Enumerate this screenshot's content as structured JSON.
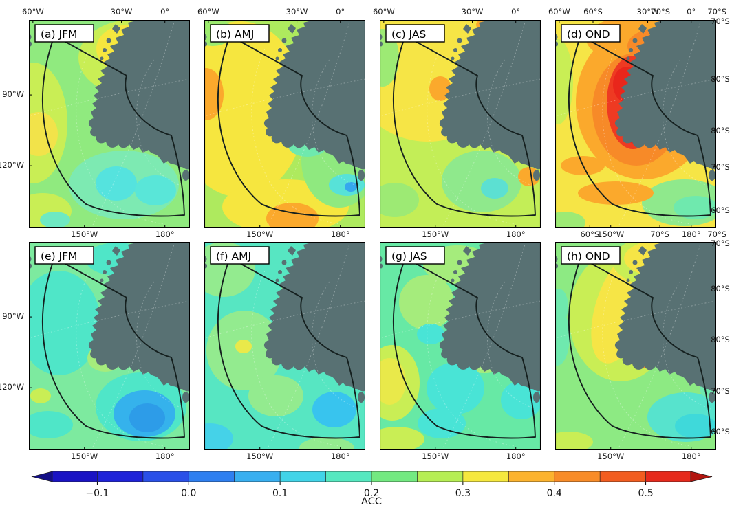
{
  "figure": {
    "background": "#ffffff",
    "land_color": "#587173",
    "sector_outline_color": "#15201f",
    "graticule_color": "#ffffff",
    "colorbar": {
      "label": "ACC",
      "tick_labels": [
        "−0.1",
        "0.0",
        "0.1",
        "0.2",
        "0.3",
        "0.4",
        "0.5"
      ],
      "tick_values": [
        -0.1,
        0.0,
        0.1,
        0.2,
        0.3,
        0.4,
        0.5
      ],
      "range": [
        -0.15,
        0.55
      ],
      "contour_interval": 0.05,
      "segment_colors": [
        "#1a13c4",
        "#1e22d8",
        "#2a50e8",
        "#2e7ff0",
        "#38aff0",
        "#41d4e8",
        "#55e8c0",
        "#73e981",
        "#b6ee54",
        "#f6e83e",
        "#fcb32e",
        "#f88c28",
        "#f25d20",
        "#e62a1c"
      ],
      "left_arrow_color": "#140f86",
      "right_arrow_color": "#b2150f"
    }
  },
  "chart_data": {
    "type": "filled-contour-map-grid",
    "variable": "ACC",
    "projection": "south-polar-stereographic sector (Ross–Amundsen–Bellingshausen seas)",
    "rows": 2,
    "cols": 4,
    "colorbar_range": [
      -0.15,
      0.55
    ],
    "axis": {
      "top_row1": [
        {
          "t": "60°W",
          "x": 0.025
        },
        {
          "t": "30°W",
          "x": 0.575
        },
        {
          "t": "0°",
          "x": 0.845
        }
      ],
      "top_d_extra": [
        {
          "t": "60°S",
          "x": 0.235
        },
        {
          "t": "70°S",
          "x": 0.655
        },
        {
          "t": "70°S",
          "x": 1.005
        }
      ],
      "bottom_common": [
        {
          "t": "150°W",
          "x": 0.345
        },
        {
          "t": "180°",
          "x": 0.845
        }
      ],
      "bottom_d_extra": [
        {
          "t": "60°S",
          "x": 0.215
        },
        {
          "t": "70°S",
          "x": 0.65
        },
        {
          "t": "70°S",
          "x": 1.005
        }
      ],
      "left_col1": [
        {
          "t": "90°W",
          "y": 0.36
        },
        {
          "t": "120°W",
          "y": 0.7
        }
      ],
      "right_row1": [
        {
          "t": "70°S",
          "y": 0.005
        },
        {
          "t": "80°S",
          "y": 0.285
        },
        {
          "t": "80°S",
          "y": 0.53
        },
        {
          "t": "70°S",
          "y": 0.705
        },
        {
          "t": "60°S",
          "y": 0.915
        }
      ],
      "right_row2": [
        {
          "t": "70°S",
          "y": 0.005
        },
        {
          "t": "80°S",
          "y": 0.225
        },
        {
          "t": "80°S",
          "y": 0.47
        },
        {
          "t": "70°S",
          "y": 0.715
        },
        {
          "t": "60°S",
          "y": 0.91
        }
      ]
    },
    "panels": [
      {
        "id": "a",
        "label": "(a) JFM",
        "row": 0,
        "col": 0,
        "acc_range": [
          0.1,
          0.35
        ],
        "base": "#90ea7f",
        "blobs": [
          [
            150,
            55,
            78,
            55,
            "#c9ee55"
          ],
          [
            140,
            42,
            42,
            34,
            "#f6e63f"
          ],
          [
            6,
            150,
            50,
            88,
            "#c9ee55"
          ],
          [
            14,
            166,
            28,
            32,
            "#f2e34a"
          ],
          [
            20,
            278,
            42,
            26,
            "#c9ee55"
          ],
          [
            138,
            240,
            80,
            50,
            "#7deab2"
          ],
          [
            127,
            238,
            30,
            25,
            "#55e3de"
          ],
          [
            184,
            248,
            30,
            22,
            "#59e6d8"
          ],
          [
            38,
            291,
            22,
            12,
            "#6ee9c2"
          ],
          [
            208,
            142,
            20,
            15,
            "#7deab2"
          ]
        ]
      },
      {
        "id": "b",
        "label": "(b) AMJ",
        "row": 0,
        "col": 1,
        "acc_range": [
          0.0,
          0.4
        ],
        "base": "#aeea5e",
        "blobs": [
          [
            52,
            130,
            95,
            128,
            "#f6e63f"
          ],
          [
            118,
            272,
            92,
            40,
            "#f6e63f"
          ],
          [
            2,
            108,
            26,
            38,
            "#fba92c"
          ],
          [
            128,
            289,
            38,
            23,
            "#fba92c"
          ],
          [
            196,
            205,
            55,
            68,
            "#8fe97f"
          ],
          [
            150,
            183,
            28,
            16,
            "#6fe9ae"
          ],
          [
            207,
            240,
            26,
            16,
            "#57e2d8"
          ],
          [
            213,
            243,
            9,
            7,
            "#35a8ee"
          ],
          [
            198,
            10,
            42,
            16,
            "#f6e63f"
          ],
          [
            12,
            18,
            30,
            20,
            "#9ceb6e"
          ]
        ]
      },
      {
        "id": "c",
        "label": "(c) JAS",
        "row": 0,
        "col": 2,
        "acc_range": [
          0.1,
          0.4
        ],
        "base": "#c3ee57",
        "blobs": [
          [
            70,
            75,
            112,
            102,
            "#f6e546"
          ],
          [
            160,
            30,
            70,
            45,
            "#f6e546"
          ],
          [
            158,
            7,
            18,
            10,
            "#fba92c"
          ],
          [
            150,
            62,
            12,
            10,
            "#fba92c"
          ],
          [
            88,
            100,
            16,
            18,
            "#fba92c"
          ],
          [
            148,
            235,
            58,
            45,
            "#8fe98c"
          ],
          [
            167,
            245,
            20,
            15,
            "#5ce0d2"
          ],
          [
            217,
            228,
            16,
            14,
            "#fba92c"
          ],
          [
            22,
            262,
            35,
            25,
            "#9dea74"
          ],
          [
            4,
            55,
            24,
            42,
            "#9dea74"
          ]
        ]
      },
      {
        "id": "d",
        "label": "(d) OND",
        "row": 0,
        "col": 3,
        "acc_range": [
          0.15,
          0.55
        ],
        "base": "#f6e546",
        "blobs": [
          [
            4,
            90,
            22,
            62,
            "#c9ee55"
          ],
          [
            14,
            295,
            30,
            16,
            "#9dea74"
          ],
          [
            188,
            266,
            62,
            34,
            "#8fe98c"
          ],
          [
            204,
            273,
            32,
            17,
            "#6fe9ae"
          ],
          [
            128,
            120,
            98,
            112,
            "#fba92c"
          ],
          [
            140,
            28,
            95,
            38,
            "#fba92c"
          ],
          [
            40,
            212,
            32,
            14,
            "#fba92c"
          ],
          [
            88,
            252,
            55,
            17,
            "#fba92c"
          ],
          [
            118,
            130,
            64,
            82,
            "#f78a28"
          ],
          [
            150,
            38,
            45,
            26,
            "#f78a28"
          ],
          [
            113,
            120,
            38,
            68,
            "#ee3a22"
          ],
          [
            104,
            94,
            20,
            26,
            "#e9261b"
          ],
          [
            116,
            150,
            22,
            30,
            "#e9261b"
          ],
          [
            180,
            163,
            45,
            22,
            "#f78a28"
          ],
          [
            224,
            193,
            20,
            17,
            "#fba92c"
          ]
        ]
      },
      {
        "id": "e",
        "label": "(e) JFM",
        "row": 1,
        "col": 0,
        "acc_range": [
          0.0,
          0.25
        ],
        "base": "#7dea9f",
        "blobs": [
          [
            128,
            25,
            46,
            24,
            "#4fe6c8"
          ],
          [
            44,
            118,
            60,
            76,
            "#4fe6c8"
          ],
          [
            163,
            240,
            66,
            50,
            "#4fe6c8"
          ],
          [
            168,
            250,
            45,
            34,
            "#35b2ec"
          ],
          [
            172,
            256,
            26,
            21,
            "#2d9ce8"
          ],
          [
            28,
            266,
            36,
            20,
            "#4fe6c8"
          ],
          [
            111,
            169,
            26,
            20,
            "#a5ec7c"
          ],
          [
            112,
            167,
            13,
            9,
            "#c9ee55"
          ],
          [
            17,
            224,
            15,
            11,
            "#c9ee55"
          ]
        ]
      },
      {
        "id": "f",
        "label": "(f) AMJ",
        "row": 1,
        "col": 1,
        "acc_range": [
          0.05,
          0.3
        ],
        "base": "#57e6c2",
        "blobs": [
          [
            28,
            40,
            46,
            40,
            "#93eb8f"
          ],
          [
            58,
            158,
            55,
            58,
            "#93eb8f"
          ],
          [
            140,
            88,
            32,
            44,
            "#93eb8f"
          ],
          [
            104,
            224,
            40,
            30,
            "#93eb8f"
          ],
          [
            57,
            152,
            12,
            10,
            "#e9e94a"
          ],
          [
            189,
            244,
            32,
            26,
            "#38c4ee"
          ],
          [
            8,
            286,
            34,
            22,
            "#45d2e8"
          ],
          [
            178,
            300,
            40,
            16,
            "#93eb8f"
          ]
        ]
      },
      {
        "id": "g",
        "label": "(g) JAS",
        "row": 1,
        "col": 2,
        "acc_range": [
          0.1,
          0.3
        ],
        "base": "#67e9a5",
        "blobs": [
          [
            113,
            33,
            50,
            28,
            "#a5ec7c"
          ],
          [
            68,
            88,
            40,
            40,
            "#a5ec7c"
          ],
          [
            152,
            158,
            45,
            33,
            "#a5ec7c"
          ],
          [
            110,
            213,
            42,
            38,
            "#49e4d6"
          ],
          [
            90,
            264,
            35,
            22,
            "#49e4d6"
          ],
          [
            74,
            134,
            20,
            15,
            "#49e4d6"
          ],
          [
            206,
            230,
            30,
            28,
            "#49e4d6"
          ],
          [
            18,
            205,
            40,
            55,
            "#c9ee55"
          ],
          [
            14,
            203,
            24,
            34,
            "#e9e94a"
          ],
          [
            25,
            287,
            40,
            18,
            "#c9ee55"
          ]
        ]
      },
      {
        "id": "h",
        "label": "(h) OND",
        "row": 1,
        "col": 3,
        "acc_range": [
          0.1,
          0.45
        ],
        "base": "#8dea83",
        "blobs": [
          [
            95,
            108,
            75,
            95,
            "#c9ee55"
          ],
          [
            97,
            95,
            38,
            85,
            "#f6e546",
            18
          ],
          [
            165,
            28,
            82,
            40,
            "#c9ee55"
          ],
          [
            160,
            24,
            60,
            28,
            "#f6e546"
          ],
          [
            126,
            170,
            17,
            14,
            "#f68d2c"
          ],
          [
            190,
            255,
            56,
            36,
            "#57e3cd"
          ],
          [
            204,
            268,
            30,
            18,
            "#3fd9da"
          ],
          [
            228,
            214,
            18,
            14,
            "#6fe9ae"
          ],
          [
            3,
            138,
            18,
            42,
            "#6fe9ae"
          ],
          [
            5,
            94,
            14,
            26,
            "#6fe9ae"
          ],
          [
            20,
            291,
            35,
            15,
            "#c9ee55"
          ]
        ]
      }
    ]
  }
}
